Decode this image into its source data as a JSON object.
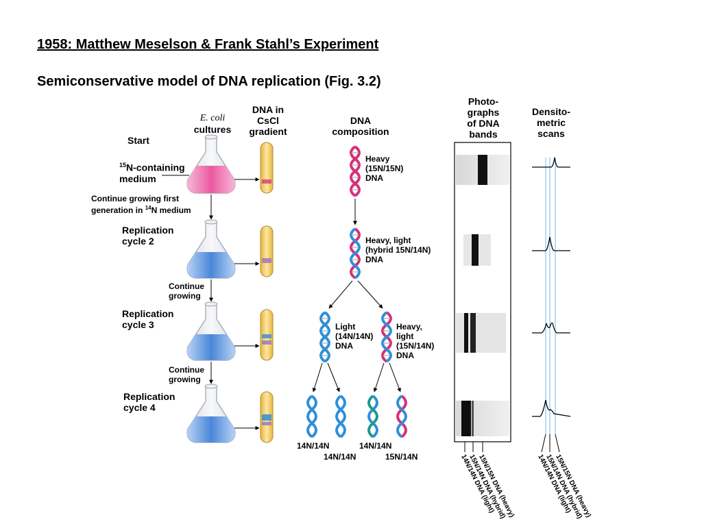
{
  "slide": {
    "title": "1958: Matthew Meselson & Frank Stahl’s Experiment",
    "subtitle": "Semiconservative model of DNA replication (Fig. 3.2)"
  },
  "headers": {
    "ecoli": "E. coli",
    "cultures": "cultures",
    "dna_in": "DNA in",
    "cscl": "CsCl",
    "gradient": "gradient",
    "dna": "DNA",
    "composition": "composition",
    "photo_1": "Photo-",
    "photo_2": "graphs",
    "photo_3": "of DNA",
    "photo_4": "bands",
    "dens_1": "Densito-",
    "dens_2": "metric",
    "dens_3": "scans"
  },
  "steps": {
    "start": "Start",
    "medium_1": "N-containing",
    "medium_1_sup": "15",
    "medium_2": "medium",
    "continue_first_1": "Continue growing first",
    "continue_first_2": "generation in ",
    "continue_first_sup": "14",
    "continue_first_3": "N medium",
    "rep2_1": "Replication",
    "rep2_2": "cycle 2",
    "cont_a_1": "Continue",
    "cont_a_2": "growing",
    "rep3_1": "Replication",
    "rep3_2": "cycle 3",
    "cont_b_1": "Continue",
    "cont_b_2": "growing",
    "rep4_1": "Replication",
    "rep4_2": "cycle 4"
  },
  "dna_labels": {
    "heavy_1": "Heavy",
    "heavy_2": "(15N/15N)",
    "heavy_3": "DNA",
    "hybrid_1": "Heavy, light",
    "hybrid_2": "(hybrid 15N/14N)",
    "hybrid_3": "DNA",
    "light_1": "Light",
    "light_2": "(14N/14N)",
    "light_3": "DNA",
    "hl_1": "Heavy,",
    "hl_2": "light",
    "hl_3": "(15N/14N)",
    "hl_4": "DNA",
    "bottom_1": "14N/14N",
    "bottom_2": "14N/14N",
    "bottom_3": "14N/14N",
    "bottom_4": "15N/14N"
  },
  "band_axis_labels": {
    "light": "14N/14N DNA (light)",
    "hybrid": "15N/14N DNA (hybrid)",
    "heavy": "15N/15N DNA (heavy)"
  },
  "scan_axis_labels": {
    "light": "14N/14N DNA (light)",
    "hybrid": "15N/14N DNA (hybrid)",
    "heavy": "15N/15N DNA (heavy)"
  },
  "colors": {
    "heavy_strand": "#d6307a",
    "light_strand": "#2f8fd8",
    "flask_pink": "#ea5aa0",
    "flask_blue": "#4a86d8",
    "tube_yellow": "#f0c850",
    "scan_line": "#9fd0ee"
  }
}
